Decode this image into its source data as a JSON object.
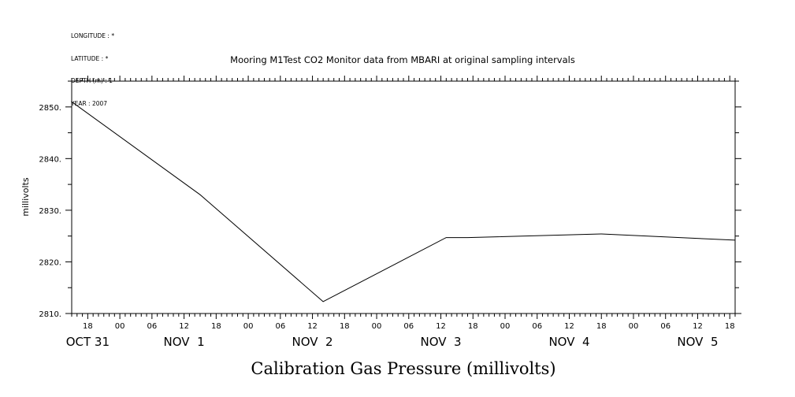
{
  "meta": {
    "longitude": "LONGITUDE : *",
    "latitude": "LATITUDE : *",
    "depth": "DEPTH (m) : 1",
    "year": "YEAR : 2007"
  },
  "chart_data": {
    "type": "line",
    "title": "Mooring M1Test CO2 Monitor data from MBARI at original sampling intervals",
    "ylabel": "millivolts",
    "xlabel": "Calibration Gas Pressure (millivolts)",
    "ylim": [
      2810,
      2855
    ],
    "xlim": [
      "2007-10-31T15:00",
      "2007-11-05T19:00"
    ],
    "y_ticks": [
      2810,
      2820,
      2830,
      2840,
      2850
    ],
    "y_tick_labels": [
      "2810.",
      "2820.",
      "2830.",
      "2840.",
      "2850."
    ],
    "x_hour_ticks": [
      "2007-10-31T18:00",
      "2007-11-01T00:00",
      "2007-11-01T06:00",
      "2007-11-01T12:00",
      "2007-11-01T18:00",
      "2007-11-02T00:00",
      "2007-11-02T06:00",
      "2007-11-02T12:00",
      "2007-11-02T18:00",
      "2007-11-03T00:00",
      "2007-11-03T06:00",
      "2007-11-03T12:00",
      "2007-11-03T18:00",
      "2007-11-04T00:00",
      "2007-11-04T06:00",
      "2007-11-04T12:00",
      "2007-11-04T18:00",
      "2007-11-05T00:00",
      "2007-11-05T06:00",
      "2007-11-05T12:00",
      "2007-11-05T18:00"
    ],
    "x_hour_tick_labels": [
      "18",
      "00",
      "06",
      "12",
      "18",
      "00",
      "06",
      "12",
      "18",
      "00",
      "06",
      "12",
      "18",
      "00",
      "06",
      "12",
      "18",
      "00",
      "06",
      "12",
      "18"
    ],
    "date_labels": [
      {
        "at": "2007-10-31T18:00",
        "text": "OCT 31"
      },
      {
        "at": "2007-11-01T12:00",
        "text": "NOV  1"
      },
      {
        "at": "2007-11-02T12:00",
        "text": "NOV  2"
      },
      {
        "at": "2007-11-03T12:00",
        "text": "NOV  3"
      },
      {
        "at": "2007-11-04T12:00",
        "text": "NOV  4"
      },
      {
        "at": "2007-11-05T12:00",
        "text": "NOV  5"
      }
    ],
    "series": [
      {
        "x": [
          "2007-10-31T15:00",
          "2007-11-01T15:00",
          "2007-11-02T14:00",
          "2007-11-03T13:00",
          "2007-11-03T17:00",
          "2007-11-04T18:00",
          "2007-11-05T19:00"
        ],
        "y": [
          2851.0,
          2833.0,
          2812.3,
          2824.7,
          2824.7,
          2825.4,
          2824.2
        ]
      }
    ],
    "grid": false,
    "legend": "none"
  }
}
